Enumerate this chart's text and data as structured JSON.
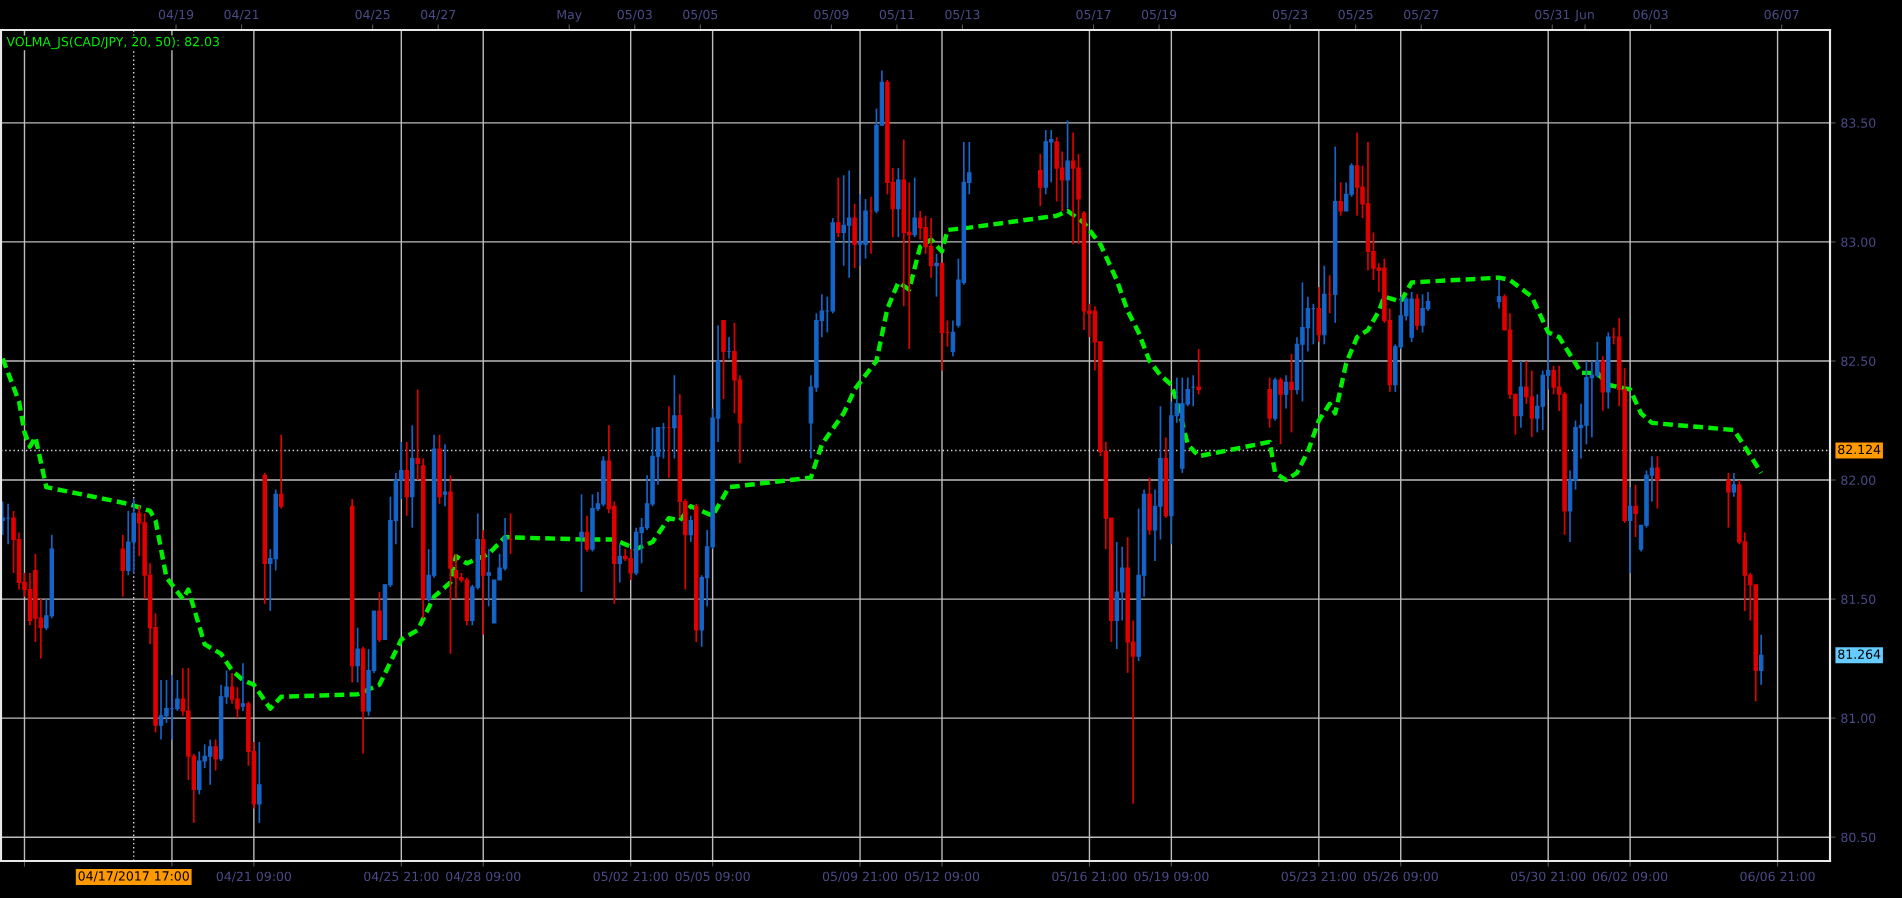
{
  "chart_data": {
    "type": "candlestick",
    "x": [
      "2017-04-13T17:00",
      "2017-04-13T21:00",
      "2017-04-14T01:00",
      "2017-04-14T05:00",
      "2017-04-14T09:00",
      "2017-04-14T13:00",
      "2017-04-14T17:00",
      "2017-04-14T21:00",
      "2017-04-15T01:00",
      "2017-04-15T05:00",
      "2017-04-17T09:00",
      "2017-04-17T13:00",
      "2017-04-17T17:00",
      "2017-04-17T21:00",
      "2017-04-18T01:00",
      "2017-04-18T05:00",
      "2017-04-18T09:00",
      "2017-04-18T13:00",
      "2017-04-18T17:00",
      "2017-04-18T21:00",
      "2017-04-19T01:00",
      "2017-04-19T05:00",
      "2017-04-19T09:00",
      "2017-04-19T13:00",
      "2017-04-19T17:00",
      "2017-04-19T21:00",
      "2017-04-20T01:00",
      "2017-04-20T05:00",
      "2017-04-20T09:00",
      "2017-04-20T13:00",
      "2017-04-20T17:00",
      "2017-04-20T21:00",
      "2017-04-21T01:00",
      "2017-04-21T05:00",
      "2017-04-21T09:00",
      "2017-04-21T13:00",
      "2017-04-21T17:00",
      "2017-04-21T21:00",
      "2017-04-22T01:00",
      "2017-04-22T05:00",
      "2017-04-24T09:00",
      "2017-04-24T13:00",
      "2017-04-24T17:00",
      "2017-04-24T21:00",
      "2017-04-25T01:00",
      "2017-04-25T05:00",
      "2017-04-25T09:00",
      "2017-04-25T13:00",
      "2017-04-25T17:00",
      "2017-04-25T21:00",
      "2017-04-26T01:00",
      "2017-04-26T05:00",
      "2017-04-26T09:00",
      "2017-04-26T13:00",
      "2017-04-26T17:00",
      "2017-04-26T21:00",
      "2017-04-27T01:00",
      "2017-04-27T05:00",
      "2017-04-27T09:00",
      "2017-04-27T13:00",
      "2017-04-27T17:00",
      "2017-04-27T21:00",
      "2017-04-28T01:00",
      "2017-04-28T05:00",
      "2017-04-28T09:00",
      "2017-04-28T13:00",
      "2017-04-28T17:00",
      "2017-04-28T21:00",
      "2017-04-29T01:00",
      "2017-04-29T05:00",
      "2017-05-01T09:00",
      "2017-05-01T13:00",
      "2017-05-01T17:00",
      "2017-05-01T21:00",
      "2017-05-02T01:00",
      "2017-05-02T05:00",
      "2017-05-02T09:00",
      "2017-05-02T13:00",
      "2017-05-02T17:00",
      "2017-05-02T21:00",
      "2017-05-03T01:00",
      "2017-05-03T05:00",
      "2017-05-03T09:00",
      "2017-05-03T13:00",
      "2017-05-03T17:00",
      "2017-05-03T21:00",
      "2017-05-04T01:00",
      "2017-05-04T05:00",
      "2017-05-04T09:00",
      "2017-05-04T13:00",
      "2017-05-04T17:00",
      "2017-05-04T21:00",
      "2017-05-05T01:00",
      "2017-05-05T05:00",
      "2017-05-05T09:00",
      "2017-05-05T13:00",
      "2017-05-05T17:00",
      "2017-05-05T21:00",
      "2017-05-06T01:00",
      "2017-05-06T05:00",
      "2017-05-08T09:00",
      "2017-05-08T13:00",
      "2017-05-08T17:00",
      "2017-05-08T21:00",
      "2017-05-09T01:00",
      "2017-05-09T05:00",
      "2017-05-09T09:00",
      "2017-05-09T13:00",
      "2017-05-09T17:00",
      "2017-05-09T21:00",
      "2017-05-10T01:00",
      "2017-05-10T05:00",
      "2017-05-10T09:00",
      "2017-05-10T13:00",
      "2017-05-10T17:00",
      "2017-05-10T21:00",
      "2017-05-11T01:00",
      "2017-05-11T05:00",
      "2017-05-11T09:00",
      "2017-05-11T13:00",
      "2017-05-11T17:00",
      "2017-05-11T21:00",
      "2017-05-12T01:00",
      "2017-05-12T05:00",
      "2017-05-12T09:00",
      "2017-05-12T13:00",
      "2017-05-12T17:00",
      "2017-05-12T21:00",
      "2017-05-13T01:00",
      "2017-05-13T05:00",
      "2017-05-15T09:00",
      "2017-05-15T13:00",
      "2017-05-15T17:00",
      "2017-05-15T21:00",
      "2017-05-16T01:00",
      "2017-05-16T05:00",
      "2017-05-16T09:00",
      "2017-05-16T13:00",
      "2017-05-16T17:00",
      "2017-05-16T21:00",
      "2017-05-17T01:00",
      "2017-05-17T05:00",
      "2017-05-17T09:00",
      "2017-05-17T13:00",
      "2017-05-17T17:00",
      "2017-05-17T21:00",
      "2017-05-18T01:00",
      "2017-05-18T05:00",
      "2017-05-18T09:00",
      "2017-05-18T13:00",
      "2017-05-18T17:00",
      "2017-05-18T21:00",
      "2017-05-19T01:00",
      "2017-05-19T05:00",
      "2017-05-19T09:00",
      "2017-05-19T13:00",
      "2017-05-19T17:00",
      "2017-05-19T21:00",
      "2017-05-20T01:00",
      "2017-05-20T05:00",
      "2017-05-22T09:00",
      "2017-05-22T13:00",
      "2017-05-22T17:00",
      "2017-05-22T21:00",
      "2017-05-23T01:00",
      "2017-05-23T05:00",
      "2017-05-23T09:00",
      "2017-05-23T13:00",
      "2017-05-23T17:00",
      "2017-05-23T21:00",
      "2017-05-24T01:00",
      "2017-05-24T05:00",
      "2017-05-24T09:00",
      "2017-05-24T13:00",
      "2017-05-24T17:00",
      "2017-05-24T21:00",
      "2017-05-25T01:00",
      "2017-05-25T05:00",
      "2017-05-25T09:00",
      "2017-05-25T13:00",
      "2017-05-25T17:00",
      "2017-05-25T21:00",
      "2017-05-26T01:00",
      "2017-05-26T05:00",
      "2017-05-26T09:00",
      "2017-05-26T13:00",
      "2017-05-26T17:00",
      "2017-05-26T21:00",
      "2017-05-27T01:00",
      "2017-05-27T05:00",
      "2017-05-29T09:00",
      "2017-05-29T13:00",
      "2017-05-29T17:00",
      "2017-05-29T21:00",
      "2017-05-30T01:00",
      "2017-05-30T05:00",
      "2017-05-30T09:00",
      "2017-05-30T13:00",
      "2017-05-30T17:00",
      "2017-05-30T21:00",
      "2017-05-31T01:00",
      "2017-05-31T05:00",
      "2017-05-31T09:00",
      "2017-05-31T13:00",
      "2017-05-31T17:00",
      "2017-05-31T21:00",
      "2017-06-01T01:00",
      "2017-06-01T05:00",
      "2017-06-01T09:00",
      "2017-06-01T13:00",
      "2017-06-01T17:00",
      "2017-06-01T21:00",
      "2017-06-02T01:00",
      "2017-06-02T05:00",
      "2017-06-02T09:00",
      "2017-06-02T13:00",
      "2017-06-02T17:00",
      "2017-06-02T21:00",
      "2017-06-03T01:00",
      "2017-06-03T05:00",
      "2017-06-05T09:00",
      "2017-06-05T13:00",
      "2017-06-05T17:00",
      "2017-06-05T21:00",
      "2017-06-06T01:00",
      "2017-06-06T05:00",
      "2017-06-06T09:00"
    ],
    "ohlc": [
      [
        81.83,
        81.91,
        81.77,
        81.84
      ],
      [
        81.84,
        81.9,
        81.73,
        81.84
      ],
      [
        81.84,
        81.87,
        81.61,
        81.75
      ],
      [
        81.75,
        81.78,
        81.54,
        81.57
      ],
      [
        81.57,
        81.61,
        81.51,
        81.54
      ],
      [
        81.54,
        81.61,
        81.39,
        81.41
      ],
      [
        81.62,
        81.69,
        81.32,
        81.42
      ],
      [
        81.42,
        81.5,
        81.25,
        81.38
      ],
      [
        81.38,
        81.5,
        81.37,
        81.43
      ],
      [
        81.43,
        81.77,
        81.42,
        81.71
      ],
      [
        81.71,
        81.77,
        81.51,
        81.62
      ],
      [
        81.62,
        81.87,
        81.6,
        81.74
      ],
      [
        81.74,
        81.92,
        81.61,
        81.86
      ],
      [
        81.86,
        81.89,
        81.68,
        81.82
      ],
      [
        81.82,
        81.86,
        81.5,
        81.6
      ],
      [
        81.6,
        81.65,
        81.31,
        81.38
      ],
      [
        81.38,
        81.44,
        80.94,
        80.97
      ],
      [
        80.97,
        81.16,
        80.91,
        81.01
      ],
      [
        81.01,
        81.16,
        80.98,
        81.04
      ],
      [
        81.04,
        81.18,
        80.91,
        81.04
      ],
      [
        81.04,
        81.16,
        81.03,
        81.08
      ],
      [
        81.08,
        81.21,
        81.01,
        81.03
      ],
      [
        81.03,
        81.21,
        80.74,
        80.84
      ],
      [
        80.84,
        80.85,
        80.56,
        80.7
      ],
      [
        80.7,
        80.86,
        80.68,
        80.82
      ],
      [
        80.82,
        80.89,
        80.79,
        80.84
      ],
      [
        80.84,
        80.91,
        80.72,
        80.88
      ],
      [
        80.88,
        80.91,
        80.78,
        80.83
      ],
      [
        80.83,
        81.14,
        80.82,
        81.09
      ],
      [
        81.09,
        81.2,
        81.06,
        81.13
      ],
      [
        81.13,
        81.19,
        81.06,
        81.08
      ],
      [
        81.08,
        81.13,
        81.0,
        81.04
      ],
      [
        81.05,
        81.23,
        81.03,
        81.06
      ],
      [
        81.06,
        81.07,
        80.8,
        80.86
      ],
      [
        80.86,
        80.9,
        80.62,
        80.64
      ],
      [
        80.64,
        80.9,
        80.56,
        80.72
      ],
      [
        82.02,
        82.03,
        81.48,
        81.65
      ],
      [
        81.65,
        81.71,
        81.45,
        81.67
      ],
      [
        81.67,
        81.96,
        81.62,
        81.94
      ],
      [
        81.94,
        82.19,
        81.88,
        81.89
      ],
      [
        81.89,
        81.92,
        81.15,
        81.22
      ],
      [
        81.22,
        81.38,
        81.15,
        81.29
      ],
      [
        81.29,
        81.3,
        80.85,
        81.03
      ],
      [
        81.03,
        81.29,
        81.01,
        81.2
      ],
      [
        81.2,
        81.45,
        81.19,
        81.45
      ],
      [
        81.45,
        81.53,
        81.32,
        81.33
      ],
      [
        81.33,
        81.56,
        81.33,
        81.56
      ],
      [
        81.56,
        81.93,
        81.55,
        81.83
      ],
      [
        81.83,
        82.03,
        81.73,
        82.0
      ],
      [
        82.0,
        82.16,
        81.92,
        82.04
      ],
      [
        82.04,
        82.16,
        81.85,
        81.93
      ],
      [
        81.93,
        82.23,
        81.8,
        82.09
      ],
      [
        82.09,
        82.38,
        82.0,
        82.07
      ],
      [
        82.06,
        82.09,
        81.42,
        81.5
      ],
      [
        81.5,
        81.71,
        81.49,
        81.6
      ],
      [
        81.6,
        82.19,
        81.59,
        82.13
      ],
      [
        82.13,
        82.19,
        81.9,
        81.93
      ],
      [
        81.94,
        82.15,
        81.89,
        81.95
      ],
      [
        81.95,
        82.02,
        81.27,
        81.63
      ],
      [
        81.62,
        81.69,
        81.5,
        81.59
      ],
      [
        81.59,
        81.61,
        81.57,
        81.58
      ],
      [
        81.58,
        81.59,
        81.39,
        81.41
      ],
      [
        81.41,
        81.56,
        81.39,
        81.55
      ],
      [
        81.55,
        81.86,
        81.54,
        81.75
      ],
      [
        81.75,
        81.79,
        81.35,
        81.6
      ],
      [
        81.6,
        81.71,
        81.47,
        81.61
      ],
      [
        81.4,
        81.58,
        81.4,
        81.58
      ],
      [
        81.58,
        81.69,
        81.58,
        81.63
      ],
      [
        81.63,
        81.84,
        81.62,
        81.76
      ],
      [
        81.75,
        81.86,
        81.69,
        81.75
      ],
      [
        81.76,
        81.94,
        81.53,
        81.78
      ],
      [
        81.78,
        81.85,
        81.7,
        81.71
      ],
      [
        81.71,
        81.94,
        81.7,
        81.88
      ],
      [
        81.88,
        81.95,
        81.87,
        81.9
      ],
      [
        81.9,
        82.1,
        81.89,
        82.08
      ],
      [
        82.08,
        82.23,
        81.86,
        81.88
      ],
      [
        81.89,
        81.91,
        81.48,
        81.65
      ],
      [
        81.65,
        81.73,
        81.57,
        81.68
      ],
      [
        81.68,
        81.71,
        81.66,
        81.67
      ],
      [
        81.67,
        81.71,
        81.58,
        81.61
      ],
      [
        81.61,
        81.8,
        81.6,
        81.78
      ],
      [
        81.78,
        81.84,
        81.65,
        81.8
      ],
      [
        81.8,
        82.02,
        81.79,
        81.9
      ],
      [
        81.9,
        82.22,
        81.89,
        82.1
      ],
      [
        82.1,
        82.22,
        81.98,
        82.22
      ],
      [
        82.22,
        82.24,
        82.09,
        82.22
      ],
      [
        82.22,
        82.31,
        82.01,
        82.22
      ],
      [
        82.22,
        82.44,
        82.09,
        82.27
      ],
      [
        82.27,
        82.36,
        81.84,
        81.91
      ],
      [
        81.91,
        81.92,
        81.54,
        81.77
      ],
      [
        81.77,
        81.85,
        81.74,
        81.83
      ],
      [
        81.89,
        81.9,
        81.32,
        81.37
      ],
      [
        81.37,
        81.6,
        81.3,
        81.59
      ],
      [
        81.59,
        81.79,
        81.47,
        81.72
      ],
      [
        81.72,
        82.3,
        81.71,
        82.26
      ],
      [
        82.26,
        82.65,
        82.16,
        82.5
      ],
      [
        82.67,
        82.67,
        82.34,
        82.54
      ],
      [
        82.54,
        82.6,
        82.51,
        82.54
      ],
      [
        82.54,
        82.66,
        82.28,
        82.42
      ],
      [
        82.42,
        82.44,
        82.07,
        82.24
      ],
      [
        82.24,
        82.44,
        82.09,
        82.39
      ],
      [
        82.39,
        82.7,
        82.37,
        82.67
      ],
      [
        82.67,
        82.78,
        82.6,
        82.71
      ],
      [
        82.71,
        82.77,
        82.62,
        82.71
      ],
      [
        82.71,
        83.1,
        82.7,
        83.08
      ],
      [
        83.08,
        83.27,
        83.02,
        83.04
      ],
      [
        83.04,
        83.28,
        82.9,
        83.07
      ],
      [
        83.07,
        83.3,
        82.85,
        83.1
      ],
      [
        83.1,
        83.16,
        82.89,
        82.99
      ],
      [
        82.99,
        83.2,
        82.9,
        83.0
      ],
      [
        82.99,
        83.18,
        82.93,
        83.13
      ],
      [
        83.13,
        83.19,
        82.95,
        83.13
      ],
      [
        83.13,
        83.56,
        83.12,
        83.49
      ],
      [
        83.49,
        83.72,
        83.49,
        83.67
      ],
      [
        83.67,
        83.68,
        83.2,
        83.25
      ],
      [
        83.25,
        83.31,
        83.02,
        83.14
      ],
      [
        83.14,
        83.31,
        83.02,
        83.26
      ],
      [
        83.26,
        83.43,
        82.73,
        83.04
      ],
      [
        83.04,
        83.25,
        82.55,
        83.03
      ],
      [
        83.03,
        83.27,
        83.02,
        83.1
      ],
      [
        83.1,
        83.13,
        83.01,
        83.06
      ],
      [
        83.06,
        83.11,
        82.95,
        82.98
      ],
      [
        82.98,
        83.1,
        82.85,
        82.9
      ],
      [
        82.9,
        82.95,
        82.77,
        82.91
      ],
      [
        82.91,
        82.91,
        82.46,
        82.62
      ],
      [
        82.62,
        82.67,
        82.56,
        82.62
      ],
      [
        82.54,
        82.67,
        82.52,
        82.62
      ],
      [
        82.65,
        82.93,
        82.64,
        82.84
      ],
      [
        82.83,
        83.42,
        82.82,
        83.25
      ],
      [
        83.25,
        83.42,
        83.2,
        83.29
      ],
      [
        83.3,
        83.37,
        83.15,
        83.23
      ],
      [
        83.23,
        83.47,
        83.2,
        83.42
      ],
      [
        83.42,
        83.47,
        83.25,
        83.43
      ],
      [
        83.42,
        83.44,
        83.17,
        83.31
      ],
      [
        83.31,
        83.38,
        83.13,
        83.26
      ],
      [
        83.26,
        83.51,
        83.14,
        83.34
      ],
      [
        83.34,
        83.46,
        82.99,
        83.31
      ],
      [
        83.31,
        83.37,
        82.99,
        83.18
      ],
      [
        83.12,
        83.13,
        82.63,
        82.71
      ],
      [
        82.71,
        82.74,
        82.6,
        82.7
      ],
      [
        82.71,
        82.73,
        82.46,
        82.58
      ],
      [
        82.58,
        82.58,
        82.1,
        82.12
      ],
      [
        82.12,
        82.16,
        81.71,
        81.84
      ],
      [
        81.84,
        81.84,
        81.32,
        81.41
      ],
      [
        81.41,
        81.74,
        81.29,
        81.53
      ],
      [
        81.53,
        81.72,
        81.41,
        81.63
      ],
      [
        81.63,
        81.76,
        81.19,
        81.32
      ],
      [
        81.32,
        81.41,
        80.64,
        81.26
      ],
      [
        81.26,
        81.88,
        81.24,
        81.6
      ],
      [
        81.6,
        81.96,
        81.51,
        81.94
      ],
      [
        81.94,
        82.01,
        81.77,
        81.79
      ],
      [
        81.79,
        81.96,
        81.66,
        81.89
      ],
      [
        81.89,
        82.31,
        81.75,
        82.09
      ],
      [
        82.09,
        82.18,
        81.84,
        81.85
      ],
      [
        81.85,
        82.33,
        81.73,
        82.27
      ],
      [
        82.27,
        82.43,
        82.24,
        82.32
      ],
      [
        82.05,
        82.43,
        82.03,
        82.32
      ],
      [
        82.32,
        82.43,
        82.31,
        82.38
      ],
      [
        82.39,
        82.44,
        82.31,
        82.39
      ],
      [
        82.39,
        82.55,
        82.36,
        82.38
      ],
      [
        82.38,
        82.43,
        82.22,
        82.26
      ],
      [
        82.26,
        82.43,
        82.25,
        82.42
      ],
      [
        82.42,
        82.43,
        82.15,
        82.36
      ],
      [
        82.36,
        82.44,
        82.3,
        82.41
      ],
      [
        82.41,
        82.53,
        82.2,
        82.38
      ],
      [
        82.38,
        82.6,
        82.36,
        82.57
      ],
      [
        82.57,
        82.83,
        82.33,
        82.64
      ],
      [
        82.64,
        82.77,
        82.54,
        82.72
      ],
      [
        82.72,
        82.74,
        82.57,
        82.72
      ],
      [
        82.72,
        82.81,
        82.58,
        82.61
      ],
      [
        82.61,
        82.9,
        82.57,
        82.78
      ],
      [
        82.78,
        82.86,
        82.7,
        82.78
      ],
      [
        82.78,
        83.4,
        82.66,
        83.17
      ],
      [
        83.17,
        83.25,
        83.11,
        83.13
      ],
      [
        83.13,
        83.25,
        83.13,
        83.2
      ],
      [
        83.2,
        83.33,
        83.19,
        83.32
      ],
      [
        83.32,
        83.46,
        83.11,
        83.23
      ],
      [
        83.23,
        83.32,
        83.1,
        83.16
      ],
      [
        83.16,
        83.42,
        82.88,
        82.96
      ],
      [
        82.96,
        83.04,
        82.84,
        82.89
      ],
      [
        82.89,
        82.91,
        82.79,
        82.88
      ],
      [
        82.89,
        82.93,
        82.66,
        82.67
      ],
      [
        82.67,
        82.72,
        82.37,
        82.4
      ],
      [
        82.4,
        82.57,
        82.37,
        82.56
      ],
      [
        82.56,
        82.77,
        82.55,
        82.69
      ],
      [
        82.69,
        82.77,
        82.67,
        82.76
      ],
      [
        82.6,
        82.79,
        82.58,
        82.76
      ],
      [
        82.76,
        82.78,
        82.63,
        82.65
      ],
      [
        82.65,
        82.78,
        82.62,
        82.72
      ],
      [
        82.72,
        82.79,
        82.71,
        82.75
      ],
      [
        82.75,
        82.84,
        82.72,
        82.77
      ],
      [
        82.77,
        82.78,
        82.63,
        82.63
      ],
      [
        82.63,
        82.7,
        82.34,
        82.36
      ],
      [
        82.36,
        82.36,
        82.19,
        82.27
      ],
      [
        82.27,
        82.5,
        82.22,
        82.39
      ],
      [
        82.39,
        82.5,
        82.32,
        82.35
      ],
      [
        82.35,
        82.46,
        82.18,
        82.26
      ],
      [
        82.26,
        82.36,
        82.2,
        82.31
      ],
      [
        82.31,
        82.46,
        82.21,
        82.44
      ],
      [
        82.44,
        82.61,
        82.38,
        82.46
      ],
      [
        82.46,
        82.48,
        82.36,
        82.39
      ],
      [
        82.39,
        82.48,
        82.29,
        82.36
      ],
      [
        82.36,
        82.37,
        81.77,
        81.87
      ],
      [
        81.87,
        82.04,
        81.74,
        82.0
      ],
      [
        82.0,
        82.25,
        81.96,
        82.22
      ],
      [
        82.22,
        82.32,
        82.09,
        82.23
      ],
      [
        82.23,
        82.5,
        82.15,
        82.43
      ],
      [
        82.43,
        82.5,
        82.18,
        82.44
      ],
      [
        82.44,
        82.58,
        82.43,
        82.5
      ],
      [
        82.5,
        82.52,
        82.29,
        82.37
      ],
      [
        82.37,
        82.62,
        82.3,
        82.6
      ],
      [
        82.6,
        82.64,
        82.57,
        82.6
      ],
      [
        82.6,
        82.68,
        82.31,
        82.38
      ],
      [
        82.38,
        82.47,
        81.82,
        81.83
      ],
      [
        81.83,
        81.97,
        81.61,
        81.89
      ],
      [
        81.89,
        81.98,
        81.76,
        81.86
      ],
      [
        81.71,
        81.81,
        81.7,
        81.81
      ],
      [
        81.81,
        82.04,
        81.8,
        82.02
      ],
      [
        82.02,
        82.1,
        81.91,
        82.05
      ],
      [
        82.05,
        82.1,
        81.88,
        82.0
      ],
      [
        82.0,
        82.03,
        81.8,
        81.95
      ],
      [
        81.95,
        82.03,
        81.93,
        81.98
      ],
      [
        81.98,
        82.0,
        81.73,
        81.74
      ],
      [
        81.74,
        81.78,
        81.45,
        81.6
      ],
      [
        81.6,
        81.61,
        81.41,
        81.56
      ],
      [
        81.56,
        81.56,
        81.07,
        81.2
      ],
      [
        81.2,
        81.35,
        81.14,
        81.264
      ]
    ],
    "colors": [
      "#1565c8",
      "#1565c8",
      "#e00000",
      "#e00000",
      "#e00000",
      "#e00000",
      "#e00000",
      "#e00000",
      "#1565c8",
      "#1565c8",
      "#e00000",
      "#1565c8",
      "#1565c8",
      "#e00000",
      "#e00000",
      "#e00000",
      "#e00000",
      "#1565c8",
      "#1565c8",
      "#1565c8",
      "#1565c8",
      "#e00000",
      "#e00000",
      "#e00000",
      "#1565c8",
      "#1565c8",
      "#1565c8",
      "#e00000",
      "#1565c8",
      "#1565c8",
      "#e00000",
      "#e00000",
      "#1565c8",
      "#e00000",
      "#e00000",
      "#1565c8",
      "#e00000",
      "#1565c8",
      "#1565c8",
      "#e00000",
      "#e00000",
      "#1565c8",
      "#e00000",
      "#1565c8",
      "#1565c8",
      "#e00000",
      "#1565c8",
      "#1565c8",
      "#1565c8",
      "#1565c8",
      "#e00000",
      "#1565c8",
      "#e00000",
      "#e00000",
      "#1565c8",
      "#1565c8",
      "#e00000",
      "#1565c8",
      "#e00000",
      "#e00000",
      "#e00000",
      "#e00000",
      "#1565c8",
      "#1565c8",
      "#e00000",
      "#1565c8",
      "#1565c8",
      "#1565c8",
      "#1565c8",
      "#e00000",
      "#1565c8",
      "#e00000",
      "#1565c8",
      "#1565c8",
      "#1565c8",
      "#e00000",
      "#e00000",
      "#1565c8",
      "#e00000",
      "#e00000",
      "#1565c8",
      "#1565c8",
      "#1565c8",
      "#1565c8",
      "#1565c8",
      "#1565c8",
      "#e00000",
      "#1565c8",
      "#e00000",
      "#e00000",
      "#1565c8",
      "#e00000",
      "#1565c8",
      "#1565c8",
      "#1565c8",
      "#1565c8",
      "#e00000",
      "#1565c8",
      "#e00000",
      "#e00000",
      "#1565c8",
      "#1565c8",
      "#1565c8",
      "#1565c8",
      "#1565c8",
      "#e00000",
      "#1565c8",
      "#1565c8",
      "#e00000",
      "#1565c8",
      "#1565c8",
      "#e00000",
      "#1565c8",
      "#1565c8",
      "#e00000",
      "#e00000",
      "#1565c8",
      "#e00000",
      "#e00000",
      "#1565c8",
      "#e00000",
      "#e00000",
      "#e00000",
      "#1565c8",
      "#e00000",
      "#e00000",
      "#1565c8",
      "#1565c8",
      "#1565c8",
      "#1565c8",
      "#e00000",
      "#1565c8",
      "#1565c8",
      "#e00000",
      "#e00000",
      "#1565c8",
      "#e00000",
      "#e00000",
      "#e00000",
      "#e00000",
      "#e00000",
      "#e00000",
      "#e00000",
      "#e00000",
      "#1565c8",
      "#1565c8",
      "#e00000",
      "#e00000",
      "#1565c8",
      "#1565c8",
      "#e00000",
      "#1565c8",
      "#1565c8",
      "#e00000",
      "#1565c8",
      "#1565c8",
      "#1565c8",
      "#1565c8",
      "#1565c8",
      "#e00000",
      "#e00000",
      "#1565c8",
      "#e00000",
      "#1565c8",
      "#e00000",
      "#1565c8",
      "#1565c8",
      "#1565c8",
      "#1565c8",
      "#e00000",
      "#1565c8",
      "#e00000",
      "#1565c8",
      "#e00000",
      "#1565c8",
      "#1565c8",
      "#e00000",
      "#e00000",
      "#e00000",
      "#e00000",
      "#e00000",
      "#e00000",
      "#e00000",
      "#1565c8",
      "#1565c8",
      "#1565c8",
      "#1565c8",
      "#e00000",
      "#1565c8",
      "#1565c8",
      "#1565c8",
      "#e00000",
      "#e00000",
      "#e00000",
      "#1565c8",
      "#e00000",
      "#e00000",
      "#1565c8",
      "#1565c8",
      "#1565c8",
      "#e00000",
      "#e00000",
      "#e00000",
      "#1565c8",
      "#1565c8",
      "#1565c8",
      "#1565c8",
      "#1565c8",
      "#1565c8",
      "#e00000",
      "#1565c8",
      "#e00000",
      "#e00000",
      "#e00000",
      "#1565c8",
      "#e00000",
      "#1565c8",
      "#1565c8",
      "#1565c8",
      "#e00000",
      "#e00000",
      "#1565c8",
      "#e00000",
      "#e00000",
      "#e00000",
      "#e00000",
      "#1565c8"
    ],
    "series": [
      {
        "name": "VOLMA_JS(CAD/JPY, 20, 50): 82.03",
        "type": "line",
        "color": "#00ee00",
        "line_style": "dashed",
        "x": [
          "2017-04-13T17:00",
          "2017-04-14T05:00",
          "2017-04-14T09:00",
          "2017-04-14T13:00",
          "2017-04-14T17:00",
          "2017-04-15T01:00",
          "2017-04-17T13:00",
          "2017-04-18T05:00",
          "2017-04-18T09:00",
          "2017-04-18T17:00",
          "2017-04-19T05:00",
          "2017-04-19T09:00",
          "2017-04-19T21:00",
          "2017-04-20T09:00",
          "2017-04-20T17:00",
          "2017-04-21T01:00",
          "2017-04-21T09:00",
          "2017-04-21T21:00",
          "2017-04-22T05:00",
          "2017-04-24T13:00",
          "2017-04-25T05:00",
          "2017-04-25T21:00",
          "2017-04-26T09:00",
          "2017-04-26T21:00",
          "2017-04-27T09:00",
          "2017-04-27T13:00",
          "2017-04-27T21:00",
          "2017-04-28T13:00",
          "2017-04-29T01:00",
          "2017-05-01T13:00",
          "2017-05-02T01:00",
          "2017-05-02T09:00",
          "2017-05-03T01:00",
          "2017-05-03T13:00",
          "2017-05-04T01:00",
          "2017-05-04T09:00",
          "2017-05-04T17:00",
          "2017-05-05T09:00",
          "2017-05-05T21:00",
          "2017-05-08T09:00",
          "2017-05-08T17:00",
          "2017-05-09T09:00",
          "2017-05-09T17:00",
          "2017-05-10T09:00",
          "2017-05-10T17:00",
          "2017-05-11T01:00",
          "2017-05-11T09:00",
          "2017-05-11T17:00",
          "2017-05-12T01:00",
          "2017-05-12T09:00",
          "2017-05-12T13:00",
          "2017-05-13T05:00",
          "2017-05-15T21:00",
          "2017-05-16T05:00",
          "2017-05-16T17:00",
          "2017-05-17T05:00",
          "2017-05-17T17:00",
          "2017-05-18T01:00",
          "2017-05-18T09:00",
          "2017-05-18T17:00",
          "2017-05-19T01:00",
          "2017-05-19T09:00",
          "2017-05-19T13:00",
          "2017-05-19T21:00",
          "2017-05-20T05:00",
          "2017-05-22T09:00",
          "2017-05-22T13:00",
          "2017-05-22T21:00",
          "2017-05-23T05:00",
          "2017-05-23T13:00",
          "2017-05-23T21:00",
          "2017-05-24T05:00",
          "2017-05-24T09:00",
          "2017-05-24T17:00",
          "2017-05-25T01:00",
          "2017-05-25T09:00",
          "2017-05-25T17:00",
          "2017-05-25T21:00",
          "2017-05-26T09:00",
          "2017-05-26T17:00",
          "2017-05-29T09:00",
          "2017-05-29T17:00",
          "2017-05-30T09:00",
          "2017-05-30T21:00",
          "2017-05-31T05:00",
          "2017-05-31T17:00",
          "2017-05-31T21:00",
          "2017-06-01T09:00",
          "2017-06-01T17:00",
          "2017-06-02T09:00",
          "2017-06-02T17:00",
          "2017-06-03T01:00",
          "2017-06-05T13:00",
          "2017-06-05T21:00",
          "2017-06-06T09:00"
        ],
        "values": [
          82.51,
          82.33,
          82.2,
          82.14,
          82.18,
          81.97,
          81.9,
          81.87,
          81.83,
          81.59,
          81.5,
          81.54,
          81.31,
          81.27,
          81.2,
          81.16,
          81.14,
          81.04,
          81.09,
          81.1,
          81.14,
          81.33,
          81.37,
          81.51,
          81.57,
          81.68,
          81.65,
          81.69,
          81.76,
          81.75,
          81.75,
          81.75,
          81.71,
          81.74,
          81.84,
          81.83,
          81.89,
          81.85,
          81.97,
          82.01,
          82.15,
          82.28,
          82.38,
          82.5,
          82.72,
          82.83,
          82.8,
          82.98,
          83.01,
          82.96,
          83.05,
          83.06,
          83.11,
          83.13,
          83.08,
          82.99,
          82.84,
          82.71,
          82.62,
          82.5,
          82.44,
          82.4,
          82.33,
          82.15,
          82.1,
          82.16,
          82.03,
          82.0,
          82.03,
          82.12,
          82.25,
          82.32,
          82.28,
          82.49,
          82.6,
          82.63,
          82.71,
          82.77,
          82.75,
          82.83,
          82.85,
          82.84,
          82.77,
          82.62,
          82.6,
          82.49,
          82.45,
          82.45,
          82.4,
          82.38,
          82.28,
          82.24,
          82.21,
          82.14,
          82.03
        ]
      }
    ],
    "xlim": [
      "2017-04-13T15:48",
      "2017-06-08T11:24"
    ],
    "xticks": [
      {
        "value": "2017-04-14T09:00",
        "label": null
      },
      {
        "value": "2017-04-18T21:00",
        "label": null
      },
      {
        "value": "2017-04-21T09:00",
        "label": "04/21 09:00"
      },
      {
        "value": "2017-04-25T21:00",
        "label": "04/25 21:00"
      },
      {
        "value": "2017-04-28T09:00",
        "label": "04/28 09:00"
      },
      {
        "value": "2017-05-02T21:00",
        "label": "05/02 21:00"
      },
      {
        "value": "2017-05-05T09:00",
        "label": "05/05 09:00"
      },
      {
        "value": "2017-05-09T21:00",
        "label": "05/09 21:00"
      },
      {
        "value": "2017-05-12T09:00",
        "label": "05/12 09:00"
      },
      {
        "value": "2017-05-16T21:00",
        "label": "05/16 21:00"
      },
      {
        "value": "2017-05-19T09:00",
        "label": "05/19 09:00"
      },
      {
        "value": "2017-05-23T21:00",
        "label": "05/23 21:00"
      },
      {
        "value": "2017-05-26T09:00",
        "label": "05/26 09:00"
      },
      {
        "value": "2017-05-30T21:00",
        "label": "05/30 21:00"
      },
      {
        "value": "2017-06-02T09:00",
        "label": "06/02 09:00"
      },
      {
        "value": "2017-06-06T21:00",
        "label": "06/06 21:00"
      }
    ],
    "x2lim": [
      "2017-04-13T15:48",
      "2017-06-08T11:24"
    ],
    "x2ticks": [
      {
        "value": "2017-04-19",
        "label": "04/19"
      },
      {
        "value": "2017-04-21",
        "label": "04/21"
      },
      {
        "value": "2017-04-25",
        "label": "04/25"
      },
      {
        "value": "2017-04-27",
        "label": "04/27"
      },
      {
        "value": "2017-05-01",
        "label": "May"
      },
      {
        "value": "2017-05-03",
        "label": "05/03"
      },
      {
        "value": "2017-05-05",
        "label": "05/05"
      },
      {
        "value": "2017-05-09",
        "label": "05/09"
      },
      {
        "value": "2017-05-11",
        "label": "05/11"
      },
      {
        "value": "2017-05-13",
        "label": "05/13"
      },
      {
        "value": "2017-05-17",
        "label": "05/17"
      },
      {
        "value": "2017-05-19",
        "label": "05/19"
      },
      {
        "value": "2017-05-23",
        "label": "05/23"
      },
      {
        "value": "2017-05-25",
        "label": "05/25"
      },
      {
        "value": "2017-05-27",
        "label": "05/27"
      },
      {
        "value": "2017-05-31",
        "label": "05/31"
      },
      {
        "value": "2017-06-01",
        "label": "Jun"
      },
      {
        "value": "2017-06-03",
        "label": "06/03"
      },
      {
        "value": "2017-06-07",
        "label": "06/07"
      }
    ],
    "ylim": [
      80.4,
      83.89
    ],
    "yticks": [
      {
        "value": 80.5,
        "label": "80.50"
      },
      {
        "value": 81,
        "label": "81.00"
      },
      {
        "value": 81.5,
        "label": "81.50"
      },
      {
        "value": 82,
        "label": "82.00"
      },
      {
        "value": 82.5,
        "label": "82.50"
      },
      {
        "value": 83,
        "label": "83.00"
      },
      {
        "value": 83.5,
        "label": "83.50"
      }
    ],
    "ref_lines": [
      {
        "axis": "y",
        "value": 82.124,
        "label": "82.124",
        "color": "#dddddd",
        "line_style": "dotted"
      },
      {
        "axis": "x",
        "value": "2017-04-17T17:00",
        "label": "04/17/2017 17:00",
        "color": "#dddddd",
        "line_style": "dotted"
      }
    ],
    "annotations": [
      "81.264"
    ],
    "grid": true
  }
}
